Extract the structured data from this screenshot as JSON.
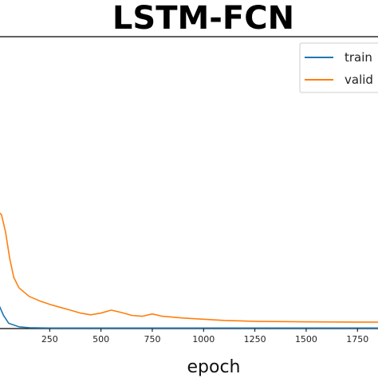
{
  "chart_data": {
    "type": "line",
    "title": "LSTM-FCN",
    "xlabel": "epoch",
    "ylabel": "",
    "x_ticks": [
      250,
      500,
      750,
      1000,
      1250,
      1500,
      1750
    ],
    "x_tick_labels": [
      "250",
      "500",
      "750",
      "1000",
      "1250",
      "1500",
      "1750"
    ],
    "xlim": [
      0,
      1850
    ],
    "ylim": [
      0,
      1
    ],
    "grid": false,
    "legend": {
      "placement": "top-right",
      "entries": [
        "train",
        "valid"
      ]
    },
    "series": [
      {
        "name": "train",
        "color": "#1f77b4",
        "points": [
          [
            0,
            0.085
          ],
          [
            25,
            0.045
          ],
          [
            50,
            0.018
          ],
          [
            100,
            0.006
          ],
          [
            150,
            0.003
          ],
          [
            250,
            0.002
          ],
          [
            500,
            0.002
          ],
          [
            1000,
            0.002
          ],
          [
            1500,
            0.002
          ],
          [
            1850,
            0.002
          ]
        ]
      },
      {
        "name": "valid",
        "color": "#ff7f0e",
        "points": [
          [
            0,
            0.4
          ],
          [
            15,
            0.39
          ],
          [
            35,
            0.33
          ],
          [
            55,
            0.24
          ],
          [
            75,
            0.175
          ],
          [
            100,
            0.14
          ],
          [
            150,
            0.11
          ],
          [
            200,
            0.095
          ],
          [
            250,
            0.083
          ],
          [
            300,
            0.073
          ],
          [
            350,
            0.063
          ],
          [
            400,
            0.053
          ],
          [
            450,
            0.047
          ],
          [
            500,
            0.053
          ],
          [
            550,
            0.063
          ],
          [
            600,
            0.055
          ],
          [
            650,
            0.045
          ],
          [
            700,
            0.042
          ],
          [
            750,
            0.05
          ],
          [
            800,
            0.042
          ],
          [
            900,
            0.036
          ],
          [
            1000,
            0.032
          ],
          [
            1100,
            0.028
          ],
          [
            1250,
            0.025
          ],
          [
            1500,
            0.023
          ],
          [
            1750,
            0.022
          ],
          [
            1850,
            0.022
          ]
        ]
      }
    ]
  }
}
